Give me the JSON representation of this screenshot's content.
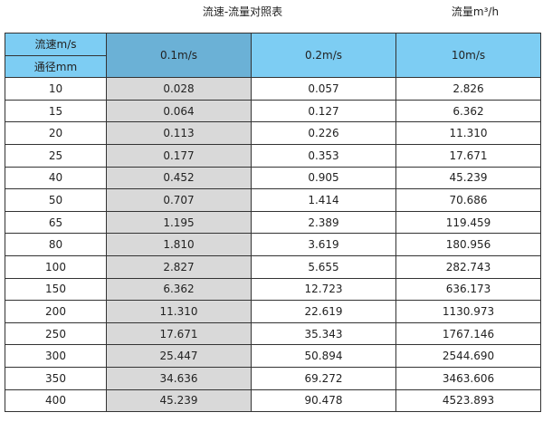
{
  "title": "流速-流量对照表",
  "unit_label": "流量m³/h",
  "header": {
    "velocity_label": "流速m/s",
    "diameter_label": "通径mm",
    "columns": [
      "0.1m/s",
      "0.2m/s",
      "10m/s"
    ]
  },
  "colors": {
    "header": "#7dcdf3",
    "highlight_header": "#6bb1d6",
    "highlight_column": "#d9d9d9"
  },
  "rows": [
    [
      "10",
      "0.028",
      "0.057",
      "2.826"
    ],
    [
      "15",
      "0.064",
      "0.127",
      "6.362"
    ],
    [
      "20",
      "0.113",
      "0.226",
      "11.310"
    ],
    [
      "25",
      "0.177",
      "0.353",
      "17.671"
    ],
    [
      "40",
      "0.452",
      "0.905",
      "45.239"
    ],
    [
      "50",
      "0.707",
      "1.414",
      "70.686"
    ],
    [
      "65",
      "1.195",
      "2.389",
      "119.459"
    ],
    [
      "80",
      "1.810",
      "3.619",
      "180.956"
    ],
    [
      "100",
      "2.827",
      "5.655",
      "282.743"
    ],
    [
      "150",
      "6.362",
      "12.723",
      "636.173"
    ],
    [
      "200",
      "11.310",
      "22.619",
      "1130.973"
    ],
    [
      "250",
      "17.671",
      "35.343",
      "1767.146"
    ],
    [
      "300",
      "25.447",
      "50.894",
      "2544.690"
    ],
    [
      "350",
      "34.636",
      "69.272",
      "3463.606"
    ],
    [
      "400",
      "45.239",
      "90.478",
      "4523.893"
    ]
  ]
}
